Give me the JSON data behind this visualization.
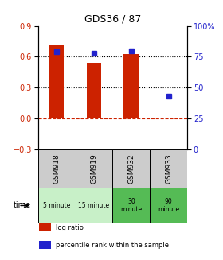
{
  "title": "GDS36 / 87",
  "samples": [
    "GSM918",
    "GSM919",
    "GSM932",
    "GSM933"
  ],
  "time_labels": [
    "5 minute",
    "15 minute",
    "30\nminute",
    "90\nminute"
  ],
  "time_colors_light": [
    "#c8f0c8",
    "#c8f0c8",
    "#55bb55",
    "#55bb55"
  ],
  "log_ratios": [
    0.72,
    0.54,
    0.63,
    0.01
  ],
  "percentile_ranks": [
    79,
    78,
    80,
    43
  ],
  "bar_color": "#cc2200",
  "dot_color": "#2222cc",
  "ylim_left": [
    -0.3,
    0.9
  ],
  "ylim_right": [
    0,
    100
  ],
  "yticks_left": [
    -0.3,
    0.0,
    0.3,
    0.6,
    0.9
  ],
  "yticks_right": [
    0,
    25,
    50,
    75,
    100
  ],
  "hlines": [
    0.0,
    0.3,
    0.6
  ],
  "hline_colors": [
    "#cc2200",
    "#000000",
    "#000000"
  ],
  "hline_styles": [
    "--",
    ":",
    ":"
  ],
  "legend_labels": [
    "log ratio",
    "percentile rank within the sample"
  ],
  "sample_bg": "#cccccc",
  "bar_width": 0.4
}
